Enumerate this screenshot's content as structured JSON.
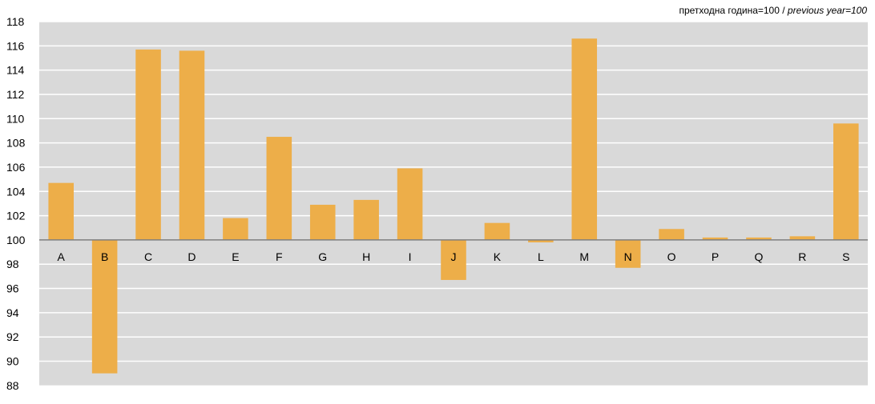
{
  "note": {
    "local": "претходна година=100",
    "separator": " / ",
    "english": "previous year=100"
  },
  "colors": {
    "bar": "#EDAE49",
    "plot_bg": "#D9D9D9",
    "grid": "#FFFFFF",
    "baseline": "#7F7F7F"
  },
  "chart_data": {
    "type": "bar",
    "baseline": 100,
    "categories": [
      "A",
      "B",
      "C",
      "D",
      "E",
      "F",
      "G",
      "H",
      "I",
      "J",
      "K",
      "L",
      "M",
      "N",
      "O",
      "P",
      "Q",
      "R",
      "S"
    ],
    "values": [
      104.7,
      89.0,
      115.7,
      115.6,
      101.8,
      108.5,
      102.9,
      103.3,
      105.9,
      96.7,
      101.4,
      99.8,
      116.6,
      97.7,
      100.9,
      100.2,
      100.2,
      100.3,
      109.6
    ],
    "yticks": [
      88,
      90,
      92,
      94,
      96,
      98,
      100,
      102,
      104,
      106,
      108,
      110,
      112,
      114,
      116,
      118
    ],
    "ylim": [
      87,
      118
    ],
    "title": "",
    "xlabel": "",
    "ylabel": "",
    "grid": true,
    "legend": "none"
  }
}
